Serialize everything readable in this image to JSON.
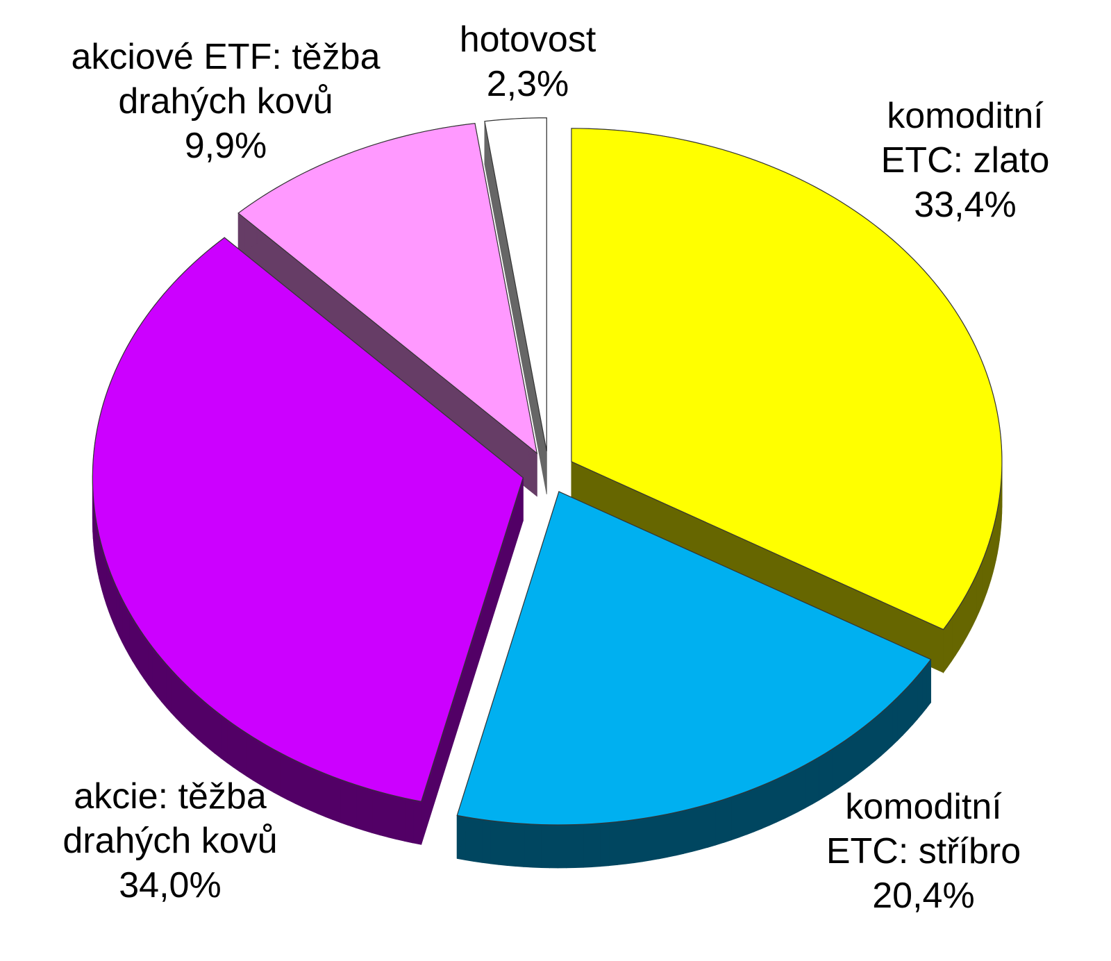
{
  "chart_data": {
    "type": "pie",
    "categories": [
      "komoditní\nETC: zlato",
      "komoditní\nETC: stříbro",
      "akcie: těžba\ndrahých kovů",
      "akciové ETF: těžba\ndrahých kovů",
      "hotovost"
    ],
    "values": [
      33.4,
      20.4,
      34.0,
      9.9,
      2.3
    ],
    "value_labels": [
      "33,4%",
      "20,4%",
      "34,0%",
      "9,9%",
      "2,3%"
    ],
    "colors": [
      "#ffff00",
      "#00b0f0",
      "#cc00ff",
      "#ff99ff",
      "#ffffff"
    ]
  }
}
